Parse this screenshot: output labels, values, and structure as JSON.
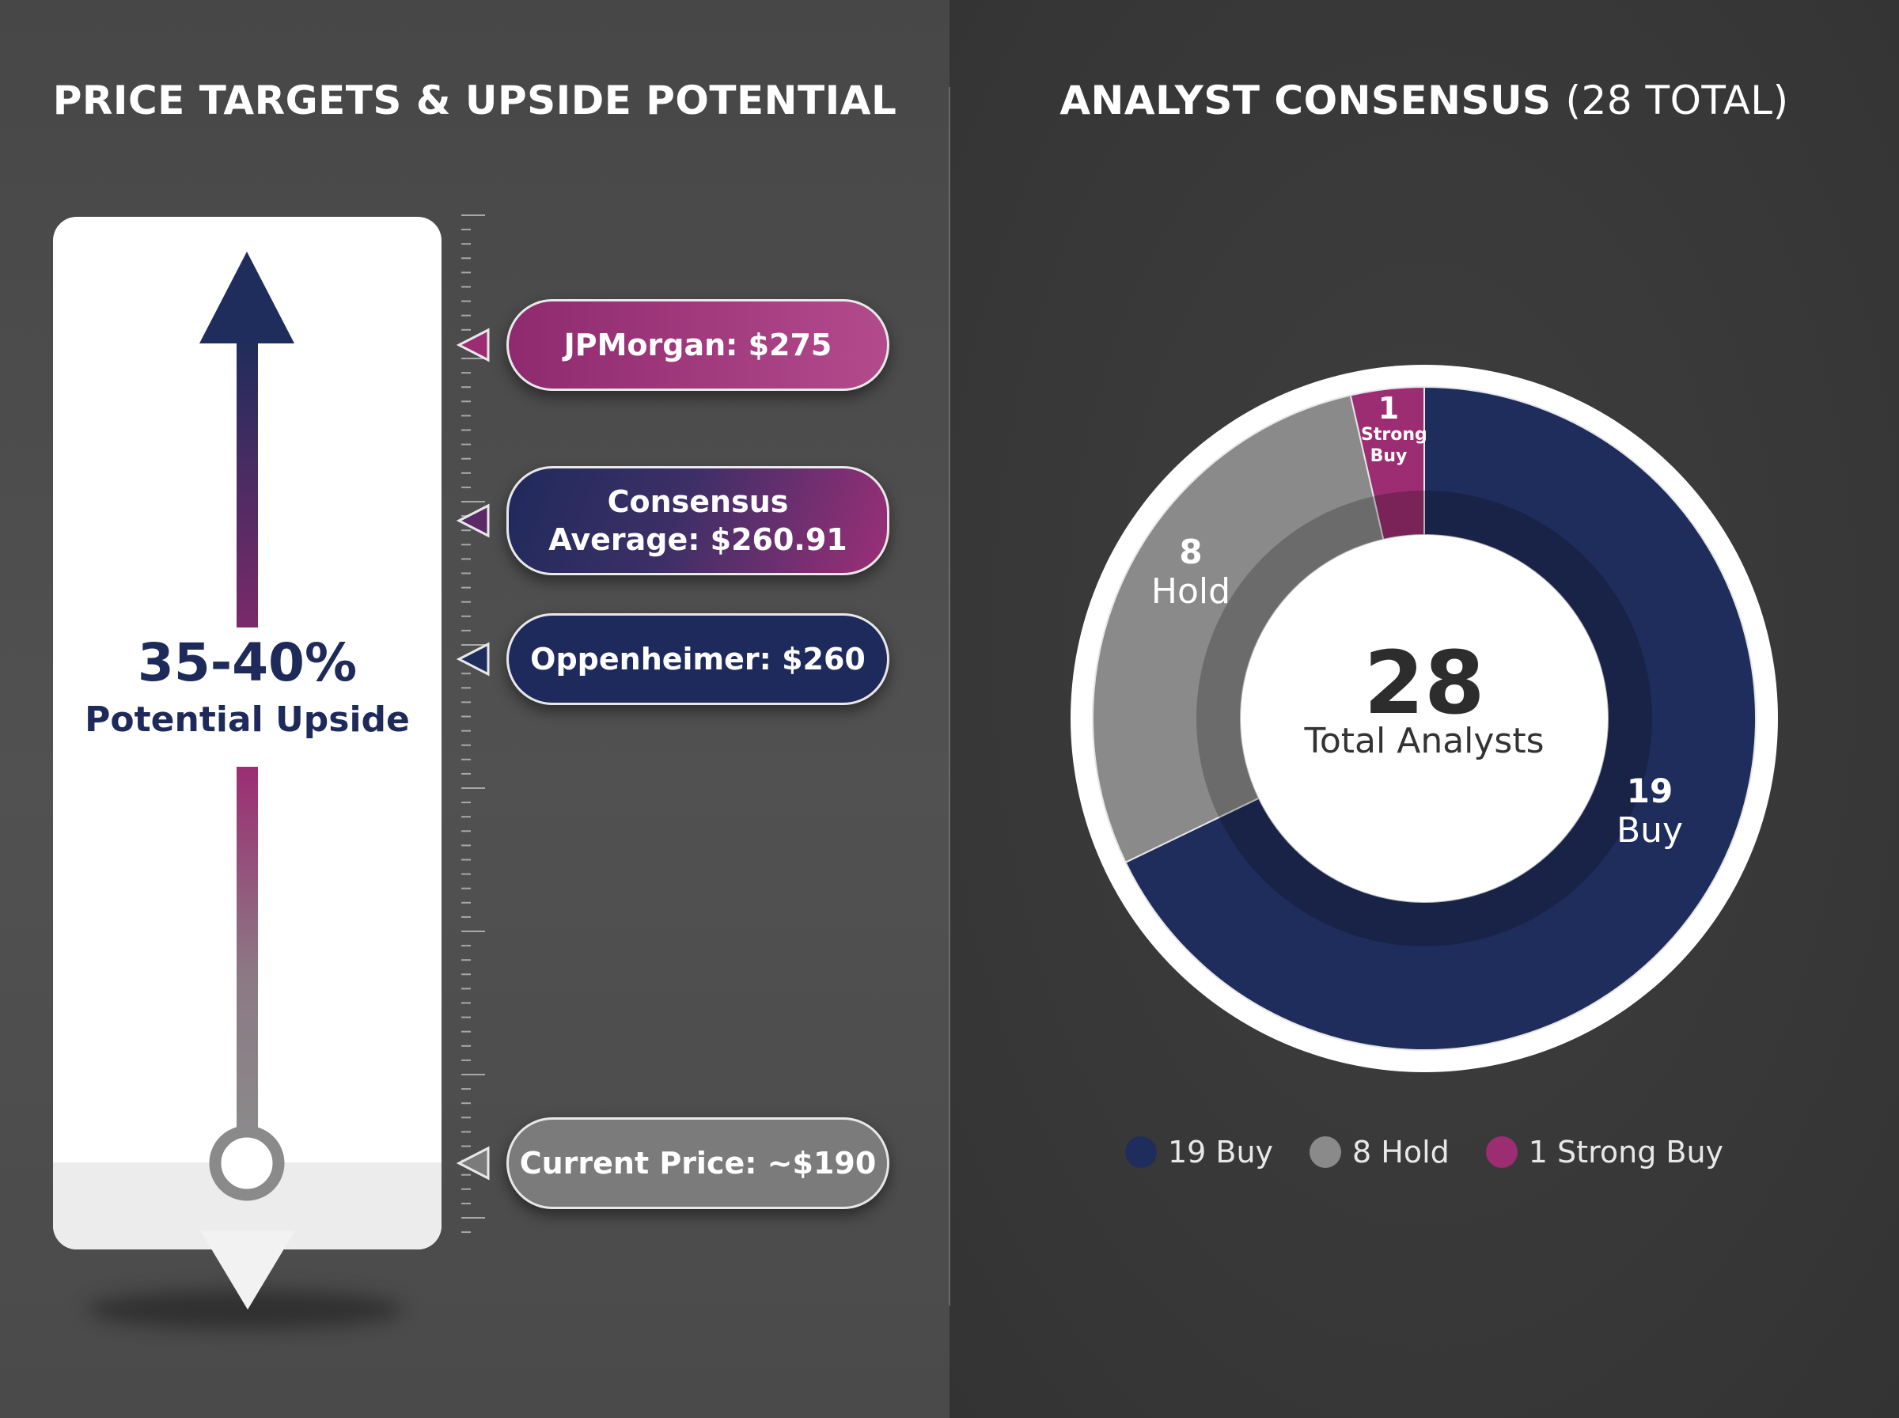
{
  "left_panel": {
    "title": "PRICE TARGETS & UPSIDE POTENTIAL",
    "upside": {
      "percent": "35-40%",
      "label": "Potential Upside"
    },
    "targets": [
      {
        "label": "JPMorgan: $275",
        "price": 275
      },
      {
        "label": "Consensus Average: $260.91",
        "price": 260.91
      },
      {
        "label": "Oppenheimer: $260",
        "price": 260
      },
      {
        "label": "Current Price: ~$190",
        "price": 190
      }
    ]
  },
  "right_panel": {
    "title_bold": "ANALYST CONSENSUS",
    "title_light": "(28 TOTAL)",
    "center": {
      "number": "28",
      "label": "Total Analysts"
    },
    "segments": [
      {
        "num": "19",
        "name": "Buy"
      },
      {
        "num": "8",
        "name": "Hold"
      },
      {
        "num": "1",
        "name": "Strong Buy"
      }
    ],
    "legend": [
      "19 Buy",
      "8 Hold",
      "1 Strong Buy"
    ]
  },
  "chart_data": [
    {
      "type": "bar",
      "title": "PRICE TARGETS & UPSIDE POTENTIAL",
      "categories": [
        "JPMorgan",
        "Consensus Average",
        "Oppenheimer",
        "Current Price"
      ],
      "values": [
        275,
        260.91,
        260,
        190
      ],
      "annotation": "35-40% Potential Upside"
    },
    {
      "type": "pie",
      "title": "ANALYST CONSENSUS (28 TOTAL)",
      "categories": [
        "Buy",
        "Hold",
        "Strong Buy"
      ],
      "values": [
        19,
        8,
        1
      ],
      "total": 28,
      "colors": [
        "#1f2d5c",
        "#8a8a8a",
        "#9c2d73"
      ],
      "legend_position": "bottom"
    }
  ],
  "colors": {
    "navy": "#1f2d5c",
    "magenta": "#9c2d73",
    "gray": "#8a8a8a"
  }
}
